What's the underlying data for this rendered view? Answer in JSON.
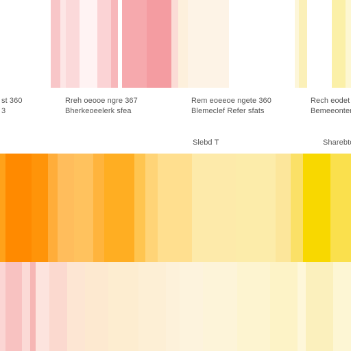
{
  "labels": {
    "col1_line1": "st   360",
    "col1_line2": "3",
    "col2_line1": "Rreh oeooe ngre   367",
    "col2_line2": "Bherkeoeelerk sfea",
    "col3_line1": "Rem eoeeoe ngete   360",
    "col3_line2": "Blemeclef Refer sfats",
    "col3_line3": "Slebd T",
    "col4_line1": "Rech eodet",
    "col4_line2": "Bemeeonter",
    "col4_line3": "Sharebto"
  },
  "palette": {
    "background": "#ffffff",
    "pink": "#f4a3a8",
    "orange": "#ff8a00",
    "yellow": "#f8d800",
    "cream": "#fbefb8"
  }
}
